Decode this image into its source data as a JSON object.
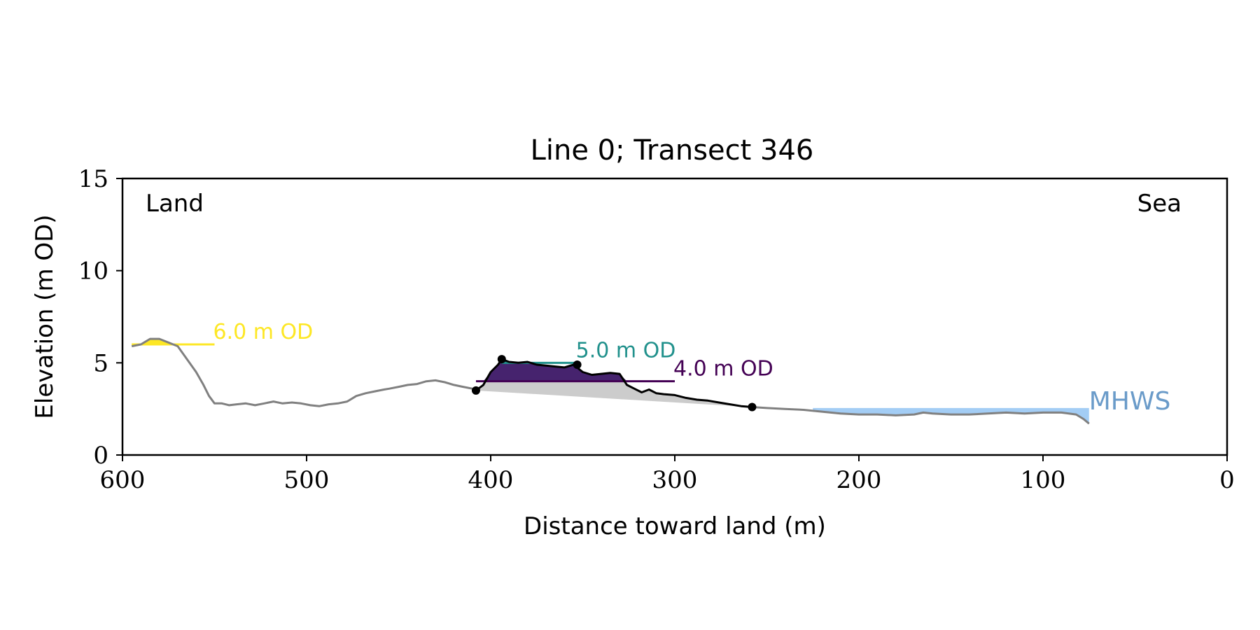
{
  "chart_data": {
    "type": "line",
    "title": "Line 0; Transect 346",
    "xlabel": "Distance toward land (m)",
    "ylabel": "Elevation (m OD)",
    "xlim": [
      600,
      0
    ],
    "ylim": [
      0,
      15
    ],
    "x_ticks": [
      "600",
      "500",
      "400",
      "300",
      "200",
      "100",
      "0"
    ],
    "y_ticks": [
      "0",
      "5",
      "10",
      "15"
    ],
    "grid": false,
    "land_label": "Land",
    "sea_label": "Sea",
    "colors": {
      "profile": "#808080",
      "dune": "#000000",
      "base_fill": "#cccccc",
      "level_6": "#fde725",
      "level_5": "#21918c",
      "level_4": "#440154",
      "level_4_fill": "#46236e",
      "mhws_fill": "#a3cdf5",
      "mhws_text": "#6a9bc9"
    },
    "profile": {
      "x": [
        595,
        590,
        585,
        580,
        575,
        570,
        565,
        560,
        556,
        553,
        550,
        546,
        542,
        538,
        533,
        528,
        523,
        518,
        513,
        508,
        503,
        498,
        493,
        488,
        483,
        478,
        473,
        468,
        463,
        458,
        455,
        450,
        445,
        440,
        435,
        430,
        425,
        420,
        415,
        410,
        408
      ],
      "y": [
        5.9,
        6.0,
        6.3,
        6.3,
        6.1,
        5.9,
        5.2,
        4.5,
        3.8,
        3.2,
        2.8,
        2.8,
        2.7,
        2.75,
        2.8,
        2.7,
        2.8,
        2.9,
        2.8,
        2.85,
        2.8,
        2.7,
        2.65,
        2.75,
        2.8,
        2.9,
        3.2,
        3.35,
        3.45,
        3.55,
        3.6,
        3.7,
        3.8,
        3.85,
        4.0,
        4.05,
        3.95,
        3.8,
        3.7,
        3.6,
        3.5
      ]
    },
    "dune": {
      "x": [
        408,
        404,
        400,
        396,
        394,
        390,
        385,
        380,
        375,
        370,
        365,
        360,
        355,
        350,
        345,
        340,
        335,
        330,
        326,
        322,
        318,
        314,
        310,
        306,
        300,
        294,
        288,
        282,
        276,
        270,
        264,
        258
      ],
      "y": [
        3.5,
        3.8,
        4.5,
        4.9,
        5.2,
        5.05,
        5.0,
        5.05,
        4.9,
        4.85,
        4.8,
        4.75,
        4.9,
        4.5,
        4.35,
        4.4,
        4.45,
        4.4,
        3.8,
        3.6,
        3.4,
        3.55,
        3.35,
        3.3,
        3.25,
        3.1,
        3.0,
        2.95,
        2.85,
        2.75,
        2.65,
        2.6
      ]
    },
    "dune_points": {
      "x": [
        408,
        394,
        353,
        258
      ],
      "y": [
        3.5,
        5.2,
        4.9,
        2.6
      ]
    },
    "seaward": {
      "x": [
        258,
        250,
        240,
        230,
        220,
        210,
        200,
        190,
        180,
        170,
        165,
        160,
        150,
        140,
        130,
        120,
        110,
        100,
        90,
        82,
        78,
        75
      ],
      "y": [
        2.6,
        2.55,
        2.5,
        2.45,
        2.35,
        2.25,
        2.2,
        2.2,
        2.15,
        2.2,
        2.3,
        2.25,
        2.2,
        2.2,
        2.25,
        2.3,
        2.25,
        2.3,
        2.3,
        2.2,
        1.95,
        1.7
      ]
    },
    "levels": [
      {
        "value": 6.0,
        "label": "6.0 m OD",
        "x_range": [
          595,
          550
        ]
      },
      {
        "value": 5.0,
        "label": "5.0 m OD",
        "x_range": [
          394,
          353
        ]
      },
      {
        "value": 4.0,
        "label": "4.0 m OD",
        "x_range": [
          408,
          300
        ]
      }
    ],
    "mhws": {
      "label": "MHWS",
      "value": 2.55,
      "x_range": [
        225,
        75
      ]
    }
  }
}
